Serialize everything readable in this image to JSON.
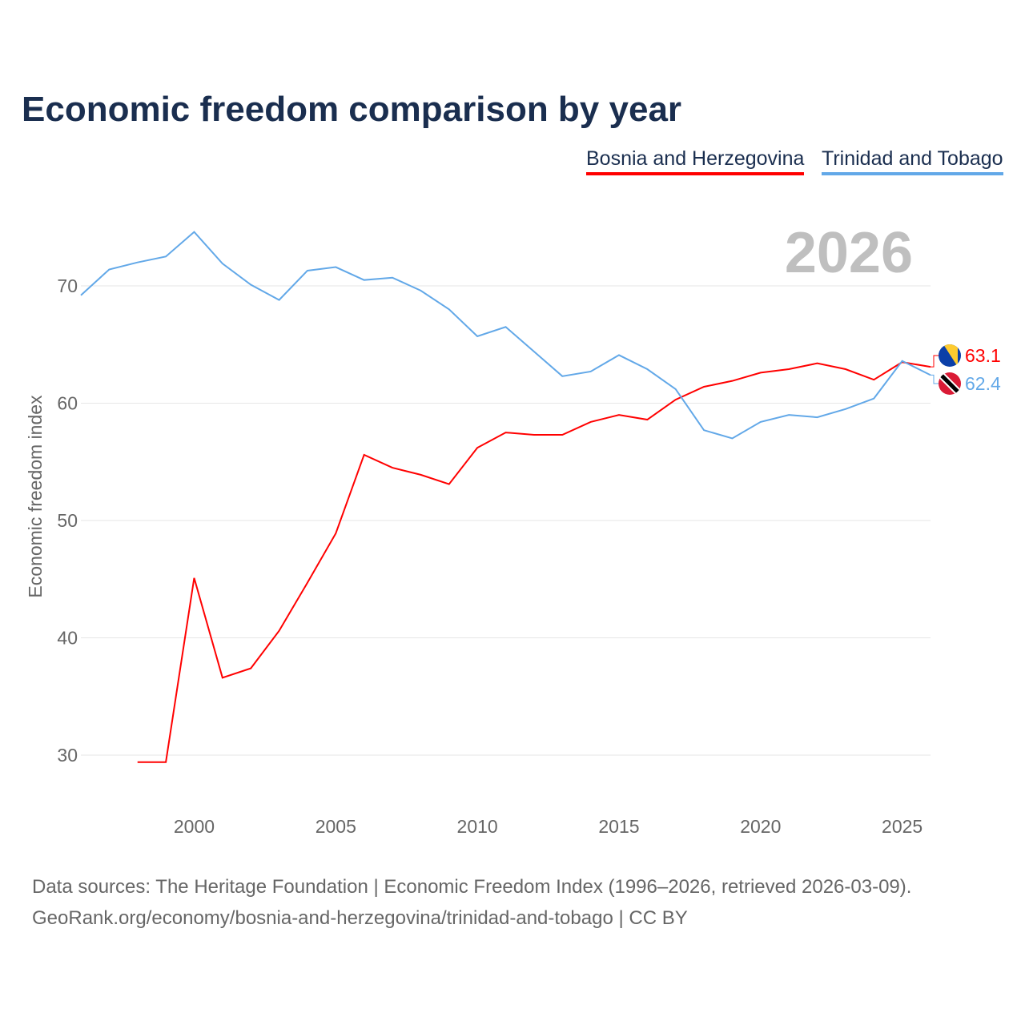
{
  "chart_data": {
    "type": "line",
    "title": "Economic freedom comparison by year",
    "ylabel": "Economic freedom index",
    "xlabel": "",
    "year_label": "2026",
    "xlim": [
      1996,
      2026
    ],
    "ylim": [
      25,
      77
    ],
    "yticks": [
      30,
      40,
      50,
      60,
      70
    ],
    "xticks": [
      2000,
      2005,
      2010,
      2015,
      2020,
      2025
    ],
    "grid": true,
    "legend": "top-right",
    "series": [
      {
        "name": "Bosnia and Herzegovina",
        "color": "#ff0000",
        "end_label": "63.1",
        "x": [
          1998,
          1999,
          2000,
          2001,
          2002,
          2003,
          2004,
          2005,
          2006,
          2007,
          2008,
          2009,
          2010,
          2011,
          2012,
          2013,
          2014,
          2015,
          2016,
          2017,
          2018,
          2019,
          2020,
          2021,
          2022,
          2023,
          2024,
          2025,
          2026
        ],
        "values": [
          29.4,
          29.4,
          45.1,
          36.6,
          37.4,
          40.6,
          44.7,
          48.9,
          55.6,
          54.5,
          53.9,
          53.1,
          56.2,
          57.5,
          57.3,
          57.3,
          58.4,
          59.0,
          58.6,
          60.3,
          61.4,
          61.9,
          62.6,
          62.9,
          63.4,
          62.9,
          62.0,
          63.5,
          63.1
        ]
      },
      {
        "name": "Trinidad and Tobago",
        "color": "#62a8e8",
        "end_label": "62.4",
        "x": [
          1996,
          1997,
          1998,
          1999,
          2000,
          2001,
          2002,
          2003,
          2004,
          2005,
          2006,
          2007,
          2008,
          2009,
          2010,
          2011,
          2012,
          2013,
          2014,
          2015,
          2016,
          2017,
          2018,
          2019,
          2020,
          2021,
          2022,
          2023,
          2024,
          2025,
          2026
        ],
        "values": [
          69.2,
          71.4,
          72.0,
          72.5,
          74.6,
          71.9,
          70.1,
          68.8,
          71.3,
          71.6,
          70.5,
          70.7,
          69.6,
          68.0,
          65.7,
          66.5,
          64.4,
          62.3,
          62.7,
          64.1,
          62.9,
          61.2,
          57.7,
          57.0,
          58.4,
          59.0,
          58.8,
          59.5,
          60.4,
          63.6,
          62.4
        ]
      }
    ]
  },
  "source": {
    "line1": "Data sources: The Heritage Foundation | Economic Freedom Index (1996–2026, retrieved 2026-03-09).",
    "line2": "GeoRank.org/economy/bosnia-and-herzegovina/trinidad-and-tobago | CC BY"
  }
}
